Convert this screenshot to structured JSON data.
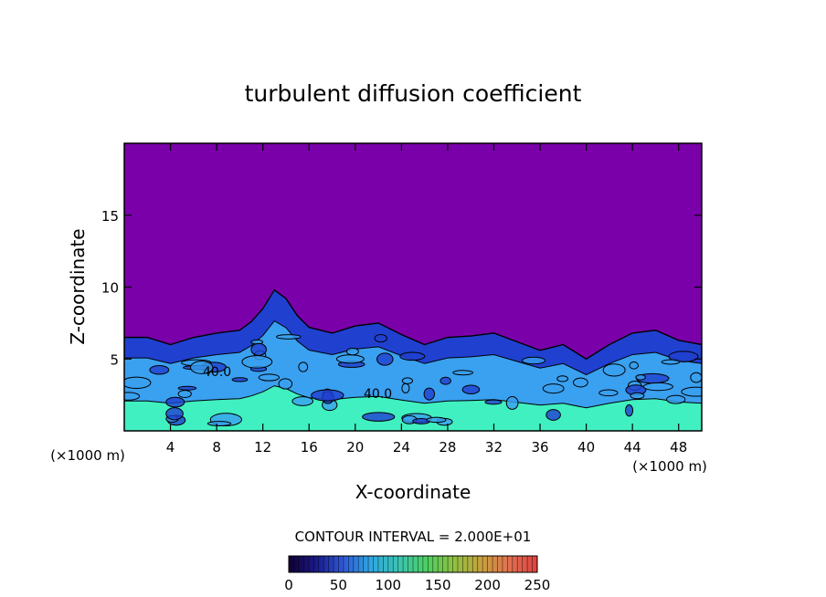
{
  "chart_data": {
    "type": "heatmap",
    "title": "turbulent diffusion coefficient",
    "xlabel": "X-coordinate",
    "ylabel": "Z-coordinate",
    "x_unit": "(×1000 m)",
    "z_unit": "(×1000 m)",
    "xlim": [
      0,
      50
    ],
    "ylim": [
      0,
      20
    ],
    "x_ticks": [
      4,
      8,
      12,
      16,
      20,
      24,
      28,
      32,
      36,
      40,
      44,
      48
    ],
    "y_ticks": [
      5,
      10,
      15
    ],
    "contour_interval_text": "CONTOUR INTERVAL = 2.000E+01",
    "contour_labels": [
      "40.0",
      "40.0"
    ],
    "colorbar": {
      "min": 0,
      "max": 250,
      "ticks": [
        0,
        50,
        100,
        150,
        200,
        250
      ],
      "colors": [
        "#100030",
        "#1a1a8c",
        "#2f5bd8",
        "#2fa8e0",
        "#3cc4b0",
        "#4cd060",
        "#90c040",
        "#c8a040",
        "#e07050",
        "#e04040"
      ]
    },
    "colors": {
      "background_field": "#7a00aa",
      "low_layer": "#2040d0",
      "mid_layer": "#3aa0f0",
      "high_layer": "#40f0c0"
    },
    "turbulent_layer_top_profile": {
      "x": [
        0,
        2,
        4,
        6,
        8,
        10,
        11,
        12,
        13,
        14,
        15,
        16,
        18,
        20,
        22,
        24,
        26,
        28,
        30,
        32,
        34,
        36,
        38,
        40,
        42,
        44,
        46,
        48,
        50
      ],
      "z": [
        6.5,
        6.5,
        6.0,
        6.5,
        6.8,
        7.0,
        7.6,
        8.5,
        9.8,
        9.2,
        8.0,
        7.2,
        6.8,
        7.3,
        7.5,
        6.7,
        6.0,
        6.5,
        6.6,
        6.8,
        6.2,
        5.6,
        6.0,
        5.0,
        6.0,
        6.8,
        7.0,
        6.3,
        6.0
      ]
    }
  }
}
